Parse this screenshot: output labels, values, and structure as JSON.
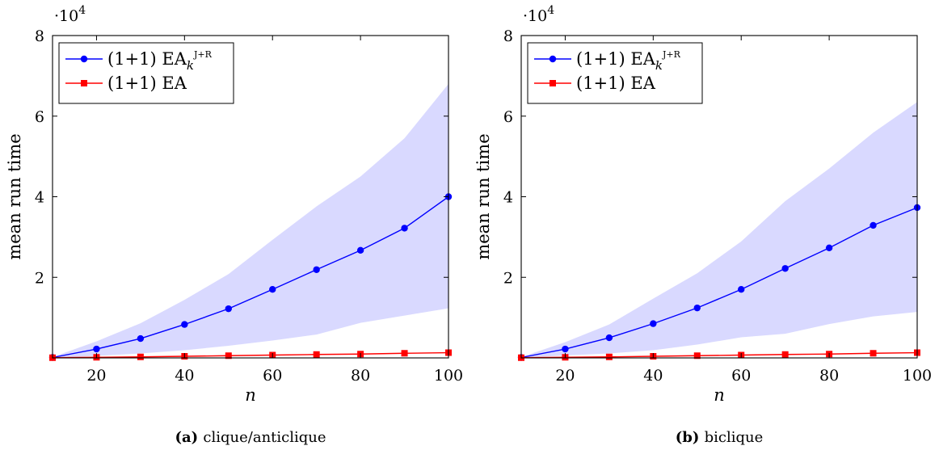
{
  "chart_data": [
    {
      "type": "line",
      "x": [
        10,
        20,
        30,
        40,
        50,
        60,
        70,
        80,
        90,
        100
      ],
      "xlabel": "n",
      "ylabel": "mean run time",
      "xlim": [
        10,
        100
      ],
      "ylim": [
        0,
        80000
      ],
      "xticks": [
        20,
        40,
        60,
        80,
        100
      ],
      "yticks": [
        20000,
        40000,
        60000,
        80000
      ],
      "ytick_labels": [
        "2",
        "4",
        "6",
        "8"
      ],
      "y_scale_label": "·10",
      "y_scale_exponent": "4",
      "grid": false,
      "legend_position": "top-left",
      "series": [
        {
          "name_parts": {
            "base": "(1+1) EA",
            "subscript": "k",
            "superscript": "J+R"
          },
          "color": "#0000ff",
          "marker": "circle",
          "values": [
            100,
            2200,
            4800,
            8300,
            12200,
            17000,
            21900,
            26700,
            32200,
            40000
          ],
          "band_lower": [
            0,
            500,
            1100,
            1900,
            3000,
            4300,
            5800,
            8700,
            10500,
            12300
          ],
          "band_upper": [
            200,
            4100,
            8600,
            14400,
            20800,
            29300,
            37600,
            45000,
            54500,
            68000
          ],
          "band_color": "#d9d9ff"
        },
        {
          "name_parts": {
            "base": "(1+1) EA",
            "subscript": "",
            "superscript": ""
          },
          "color": "#ff0000",
          "marker": "square",
          "values": [
            50,
            150,
            250,
            400,
            550,
            700,
            850,
            950,
            1150,
            1300
          ]
        }
      ],
      "caption": {
        "label": "(a)",
        "text": "clique/anticlique"
      }
    },
    {
      "type": "line",
      "x": [
        10,
        20,
        30,
        40,
        50,
        60,
        70,
        80,
        90,
        100
      ],
      "xlabel": "n",
      "ylabel": "mean run time",
      "xlim": [
        10,
        100
      ],
      "ylim": [
        0,
        80000
      ],
      "xticks": [
        20,
        40,
        60,
        80,
        100
      ],
      "yticks": [
        20000,
        40000,
        60000,
        80000
      ],
      "ytick_labels": [
        "2",
        "4",
        "6",
        "8"
      ],
      "y_scale_label": "·10",
      "y_scale_exponent": "4",
      "grid": false,
      "legend_position": "top-left",
      "series": [
        {
          "name_parts": {
            "base": "(1+1) EA",
            "subscript": "k",
            "superscript": "J+R"
          },
          "color": "#0000ff",
          "marker": "circle",
          "values": [
            100,
            2200,
            5000,
            8500,
            12400,
            17000,
            22200,
            27300,
            32900,
            37300
          ],
          "band_lower": [
            0,
            600,
            1100,
            1900,
            3300,
            5100,
            6000,
            8400,
            10300,
            11400
          ],
          "band_upper": [
            200,
            3900,
            8300,
            14700,
            21000,
            28900,
            38900,
            47000,
            55900,
            63500
          ],
          "band_color": "#d9d9ff"
        },
        {
          "name_parts": {
            "base": "(1+1) EA",
            "subscript": "",
            "superscript": ""
          },
          "color": "#ff0000",
          "marker": "square",
          "values": [
            50,
            150,
            250,
            400,
            550,
            700,
            850,
            950,
            1150,
            1300
          ]
        }
      ],
      "caption": {
        "label": "(b)",
        "text": "biclique"
      }
    }
  ]
}
